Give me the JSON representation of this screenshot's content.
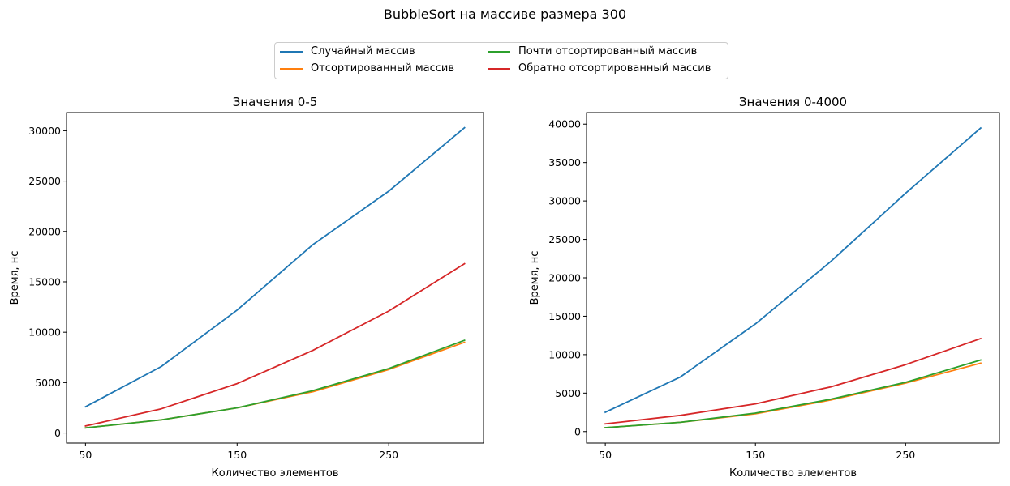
{
  "figure_title": "BubbleSort на массиве размера 300",
  "legend": [
    {
      "name": "Случайный массив",
      "color": "#1f77b4"
    },
    {
      "name": "Отсортированный массив",
      "color": "#ff7f0e"
    },
    {
      "name": "Почти отсортированный массив",
      "color": "#2ca02c"
    },
    {
      "name": "Обратно отсортированный массив",
      "color": "#d62728"
    }
  ],
  "chart_data": [
    {
      "type": "line",
      "title": "Значения 0-5",
      "xlabel": "Количество элементов",
      "ylabel": "Время, нс",
      "x": [
        50,
        100,
        150,
        200,
        250,
        300
      ],
      "xticks": [
        50,
        150,
        250
      ],
      "yticks": [
        0,
        5000,
        10000,
        15000,
        20000,
        25000,
        30000
      ],
      "xlim": [
        37.5,
        312.5
      ],
      "ylim": [
        -1000,
        31800
      ],
      "series": [
        {
          "name": "Случайный массив",
          "color": "#1f77b4",
          "values": [
            2600,
            6600,
            12200,
            18700,
            24000,
            30300
          ]
        },
        {
          "name": "Отсортированный массив",
          "color": "#ff7f0e",
          "values": [
            500,
            1300,
            2500,
            4100,
            6300,
            9000
          ]
        },
        {
          "name": "Почти отсортированный массив",
          "color": "#2ca02c",
          "values": [
            500,
            1300,
            2500,
            4200,
            6400,
            9200
          ]
        },
        {
          "name": "Обратно отсортированный массив",
          "color": "#d62728",
          "values": [
            700,
            2400,
            4900,
            8200,
            12100,
            16800
          ]
        }
      ]
    },
    {
      "type": "line",
      "title": "Значения 0-4000",
      "xlabel": "Количество элементов",
      "ylabel": "Время, нс",
      "x": [
        50,
        100,
        150,
        200,
        250,
        300
      ],
      "xticks": [
        50,
        150,
        250
      ],
      "yticks": [
        0,
        5000,
        10000,
        15000,
        20000,
        25000,
        30000,
        35000,
        40000
      ],
      "xlim": [
        37.5,
        312.5
      ],
      "ylim": [
        -1500,
        41500
      ],
      "series": [
        {
          "name": "Случайный массив",
          "color": "#1f77b4",
          "values": [
            2500,
            7100,
            14000,
            22100,
            31000,
            39500
          ]
        },
        {
          "name": "Отсортированный массив",
          "color": "#ff7f0e",
          "values": [
            500,
            1200,
            2300,
            4100,
            6300,
            8900
          ]
        },
        {
          "name": "Почти отсортированный массив",
          "color": "#2ca02c",
          "values": [
            500,
            1200,
            2400,
            4200,
            6400,
            9300
          ]
        },
        {
          "name": "Обратно отсортированный массив",
          "color": "#d62728",
          "values": [
            1000,
            2100,
            3600,
            5800,
            8700,
            12100
          ]
        }
      ]
    }
  ]
}
